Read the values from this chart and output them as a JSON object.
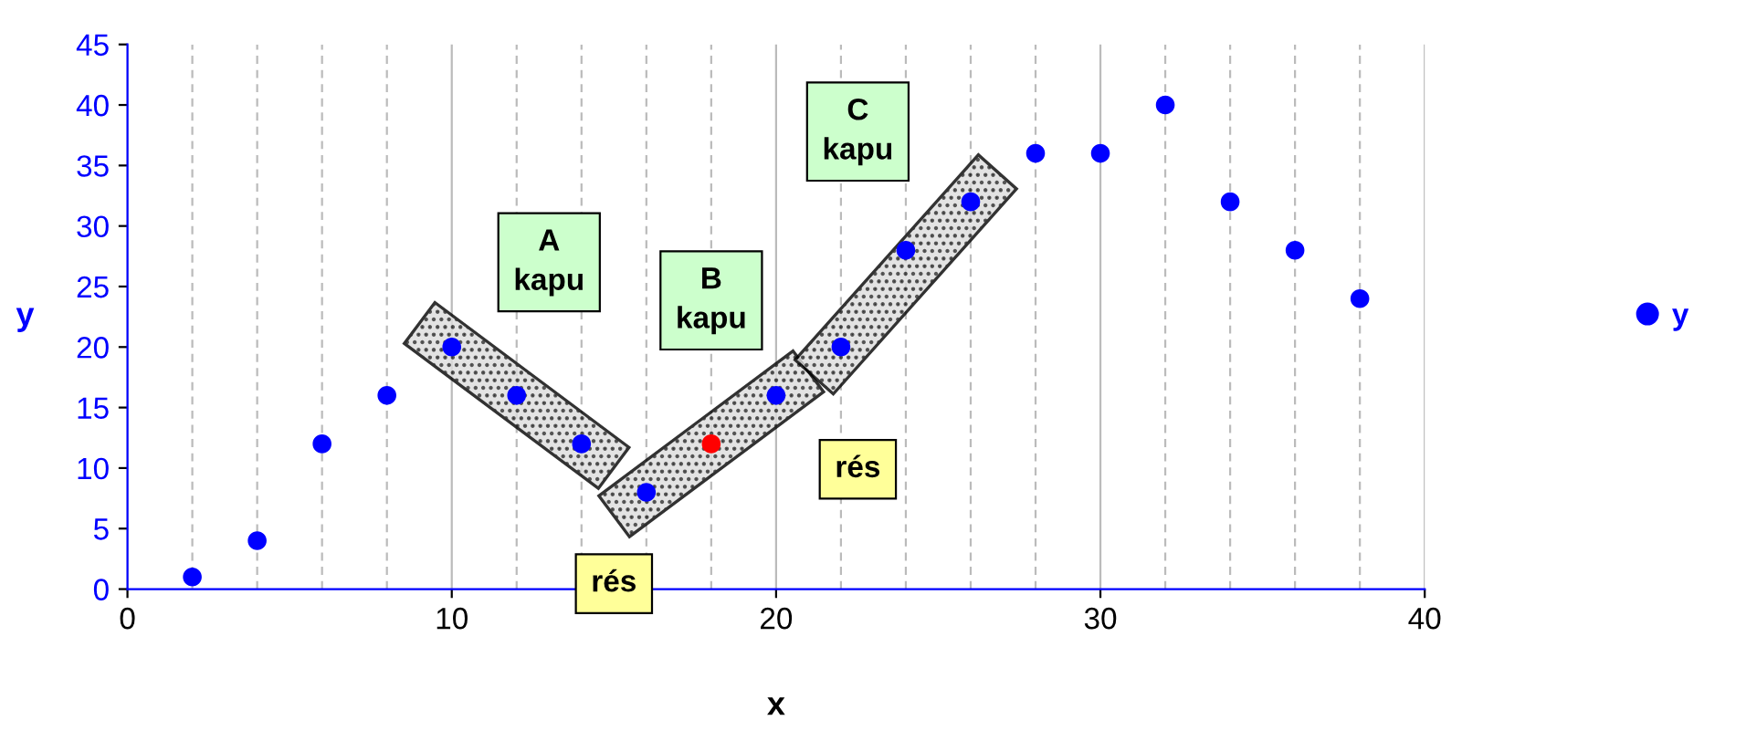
{
  "chart_data": {
    "type": "scatter",
    "xlabel": "x",
    "ylabel": "y",
    "x": [
      2,
      4,
      6,
      8,
      10,
      12,
      14,
      16,
      18,
      20,
      22,
      24,
      26,
      28,
      30,
      32,
      34,
      36,
      38
    ],
    "series": [
      {
        "name": "y",
        "color": "#0000ff",
        "values": [
          1,
          4,
          12,
          16,
          20,
          16,
          12,
          8,
          12,
          16,
          20,
          28,
          32,
          36,
          36,
          40,
          32,
          28,
          24
        ],
        "colors": [
          "#0000ff",
          "#0000ff",
          "#0000ff",
          "#0000ff",
          "#0000ff",
          "#0000ff",
          "#0000ff",
          "#0000ff",
          "#ff0000",
          "#0000ff",
          "#0000ff",
          "#0000ff",
          "#0000ff",
          "#0000ff",
          "#0000ff",
          "#0000ff",
          "#0000ff",
          "#0000ff",
          "#0000ff"
        ]
      }
    ],
    "xlim": [
      0,
      40
    ],
    "xticks": [
      0,
      10,
      20,
      30,
      40
    ],
    "ylim": [
      0,
      45
    ],
    "yticks": [
      0,
      5,
      10,
      15,
      20,
      25,
      30,
      35,
      40,
      45
    ],
    "grid": "x",
    "legend": "right",
    "marker": "circle",
    "annotations": [
      "A\nkapu",
      "B\nkapu",
      "C\nkapu",
      "rés",
      "rés"
    ]
  }
}
